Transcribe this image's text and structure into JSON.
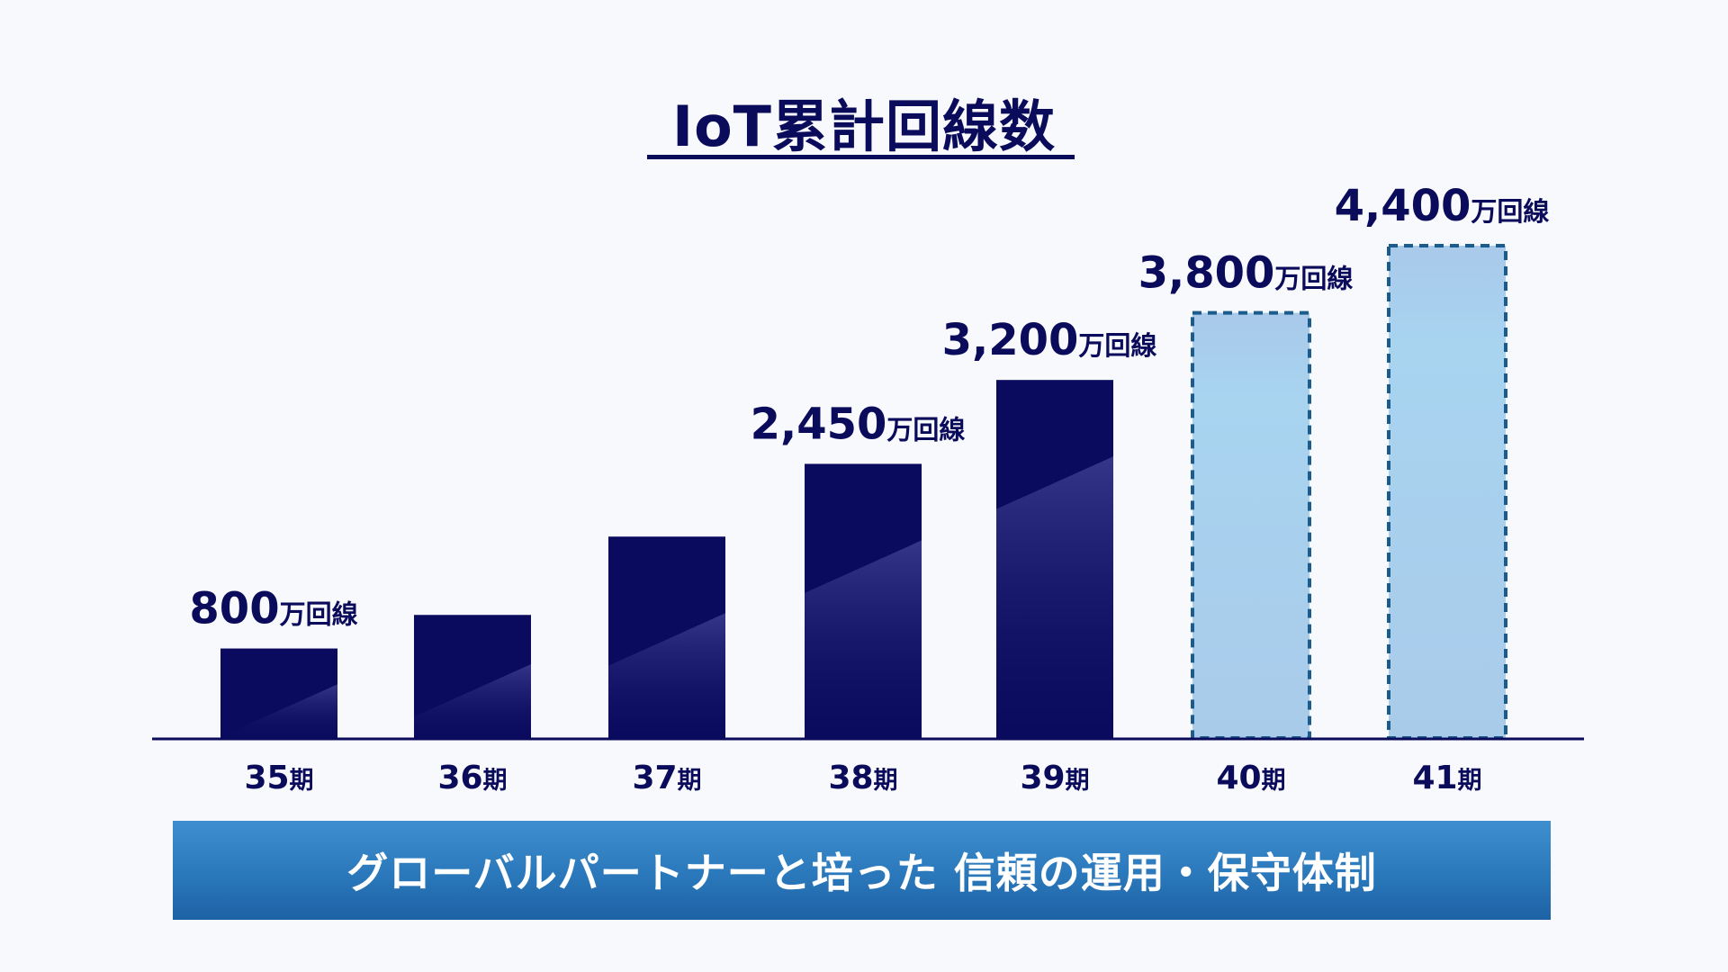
{
  "chart_data": {
    "type": "bar",
    "title": "IoT累計回線数",
    "xlabel": "",
    "ylabel": "",
    "unit": "万回線",
    "categories": [
      "35期",
      "36期",
      "37期",
      "38期",
      "39期",
      "40期",
      "41期"
    ],
    "values": [
      800,
      1100,
      1800,
      2450,
      3200,
      3800,
      4400
    ],
    "forecast": [
      false,
      false,
      false,
      false,
      false,
      true,
      true
    ],
    "data_labels": [
      "800",
      null,
      null,
      "2,450",
      "3,200",
      "3,800",
      "4,400"
    ],
    "ylim": [
      0,
      4400
    ],
    "grid": false,
    "colors": {
      "actual": "#0a0a5e",
      "forecast_fill": "#a9d1ef",
      "forecast_border": "#1b5c8c",
      "axis": "#0b0b5c"
    }
  },
  "banner": {
    "text": "グローバルパートナーと培った 信頼の運用・保守体制"
  }
}
